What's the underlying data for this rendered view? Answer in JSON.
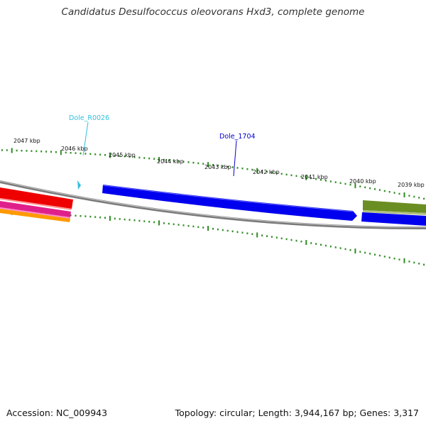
{
  "title": "Candidatus Desulfococcus oleovorans Hxd3, complete genome",
  "footer": {
    "accession": "Accession: NC_009943",
    "topology": "Topology: circular; Length: 3,944,167 bp; Genes: 3,317"
  },
  "ticks": [
    "2047 kbp",
    "2046 kbp",
    "2045 kbp",
    "2044 kbp",
    "2043 kbp",
    "2042 kbp",
    "2041 kbp",
    "2040 kbp",
    "2039 kbp"
  ],
  "gene_labels": [
    {
      "id": "Dole_R0026",
      "color": "#33c0dd"
    },
    {
      "id": "Dole_1704",
      "color": "#0000cc"
    }
  ],
  "colors": {
    "backbone": "#7a7a7a",
    "tick": "#2e8b22",
    "blue_gene": "#0000ee",
    "olive_gene": "#6b8e23",
    "red_gene": "#ee0000",
    "magenta_gene": "#e0208a",
    "orange_gene": "#ff9a00"
  }
}
